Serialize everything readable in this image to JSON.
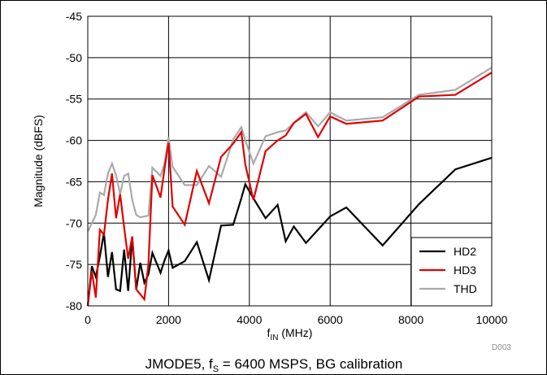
{
  "chart_data": {
    "type": "line",
    "xlabel_main": "f",
    "xlabel_sub": "IN",
    "xlabel_unit": " (MHz)",
    "ylabel": "Magnitude (dBFS)",
    "xlim": [
      0,
      10000
    ],
    "ylim": [
      -80,
      -45
    ],
    "xticks": [
      0,
      2000,
      4000,
      6000,
      8000,
      10000
    ],
    "yticks": [
      -80,
      -75,
      -70,
      -65,
      -60,
      -55,
      -50,
      -45
    ],
    "grid": true,
    "legend_position": "bottom-right",
    "figure_code": "D003",
    "caption": {
      "prefix": "JMODE5, f",
      "sub": "S",
      "suffix": " = 6400 MSPS, BG calibration"
    },
    "series": [
      {
        "name": "HD2",
        "color": "#000000",
        "x": [
          0,
          100,
          200,
          300,
          400,
          500,
          600,
          700,
          800,
          900,
          1000,
          1100,
          1200,
          1300,
          1400,
          1500,
          1600,
          1800,
          1900,
          2000,
          2100,
          2400,
          2700,
          3000,
          3300,
          3600,
          3800,
          3900,
          4100,
          4400,
          4700,
          4900,
          5100,
          5400,
          5700,
          6000,
          6400,
          7300,
          8200,
          9100,
          10000
        ],
        "y": [
          -80,
          -75.2,
          -76.5,
          -74,
          -71.2,
          -76.5,
          -73.5,
          -78,
          -78.2,
          -73.2,
          -78.2,
          -71.8,
          -78,
          -74.8,
          -77.2,
          -76.2,
          -73.6,
          -76,
          -74.5,
          -73.3,
          -75.4,
          -74.6,
          -72.3,
          -76.9,
          -70.3,
          -70.2,
          -67,
          -65.3,
          -67,
          -69.4,
          -67.8,
          -72.2,
          -70.4,
          -72.4,
          -70.8,
          -69.2,
          -68.1,
          -72.7,
          -67.7,
          -63.5,
          -62.1
        ]
      },
      {
        "name": "HD3",
        "color": "#e00000",
        "x": [
          0,
          100,
          200,
          300,
          400,
          500,
          600,
          700,
          800,
          900,
          1000,
          1100,
          1200,
          1300,
          1400,
          1500,
          1600,
          1800,
          1900,
          2000,
          2100,
          2400,
          2700,
          3000,
          3300,
          3600,
          3800,
          3900,
          4100,
          4400,
          4700,
          4900,
          5100,
          5400,
          5700,
          6000,
          6400,
          7300,
          8200,
          9100,
          10000
        ],
        "y": [
          -80,
          -75.8,
          -79,
          -70.8,
          -71.4,
          -67.2,
          -64,
          -69.4,
          -66.5,
          -70.5,
          -74.3,
          -71.6,
          -78,
          -78.6,
          -79.2,
          -75,
          -64.2,
          -66.9,
          -63.4,
          -60.3,
          -68,
          -70.2,
          -63.7,
          -67.6,
          -62,
          -60.4,
          -59,
          -62.9,
          -67.2,
          -61.3,
          -60,
          -59.4,
          -57.9,
          -56.8,
          -59.6,
          -57.1,
          -58,
          -57.6,
          -54.7,
          -54.5,
          -51.8
        ]
      },
      {
        "name": "THD",
        "color": "#aaaaaa",
        "x": [
          0,
          100,
          200,
          300,
          400,
          500,
          600,
          700,
          800,
          900,
          1000,
          1100,
          1200,
          1300,
          1400,
          1500,
          1600,
          1800,
          1900,
          2000,
          2100,
          2400,
          2700,
          3000,
          3300,
          3600,
          3800,
          3900,
          4100,
          4400,
          4700,
          4900,
          5100,
          5400,
          5700,
          6000,
          6400,
          7300,
          8200,
          9100,
          10000
        ],
        "y": [
          -71,
          -70,
          -69,
          -66.3,
          -66.6,
          -64,
          -62.8,
          -64.2,
          -66.5,
          -64.3,
          -64,
          -67.2,
          -69,
          -69.3,
          -69.2,
          -69.1,
          -63.3,
          -64.3,
          -62.8,
          -59.6,
          -63.2,
          -65.4,
          -65.4,
          -63.1,
          -64.4,
          -59.9,
          -58.4,
          -60,
          -62.8,
          -59.5,
          -59,
          -58.8,
          -57.9,
          -56.6,
          -58.3,
          -56.6,
          -57.6,
          -57.2,
          -54.5,
          -53.9,
          -51.2
        ]
      }
    ]
  }
}
